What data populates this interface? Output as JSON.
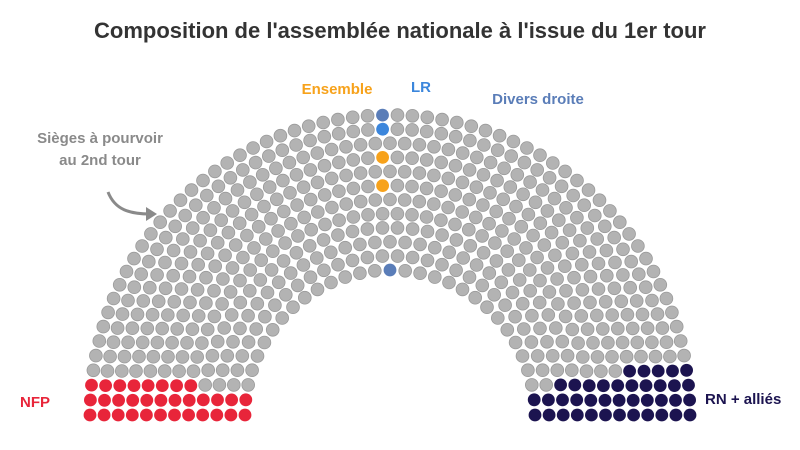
{
  "chart_data": {
    "type": "parliament",
    "title": "Composition de l'assemblée nationale à l'issue du 1er tour",
    "categories": [
      "NFP",
      "Sièges à pourvoir au 2nd tour",
      "Ensemble",
      "LR",
      "Divers droite",
      "RN + alliés"
    ],
    "values": [
      32,
      501,
      2,
      1,
      2,
      39
    ],
    "colors": [
      "#e8253a",
      "#b3b3b3",
      "#f7a21b",
      "#3b86dc",
      "#5a7db8",
      "#1c1450"
    ]
  }
}
